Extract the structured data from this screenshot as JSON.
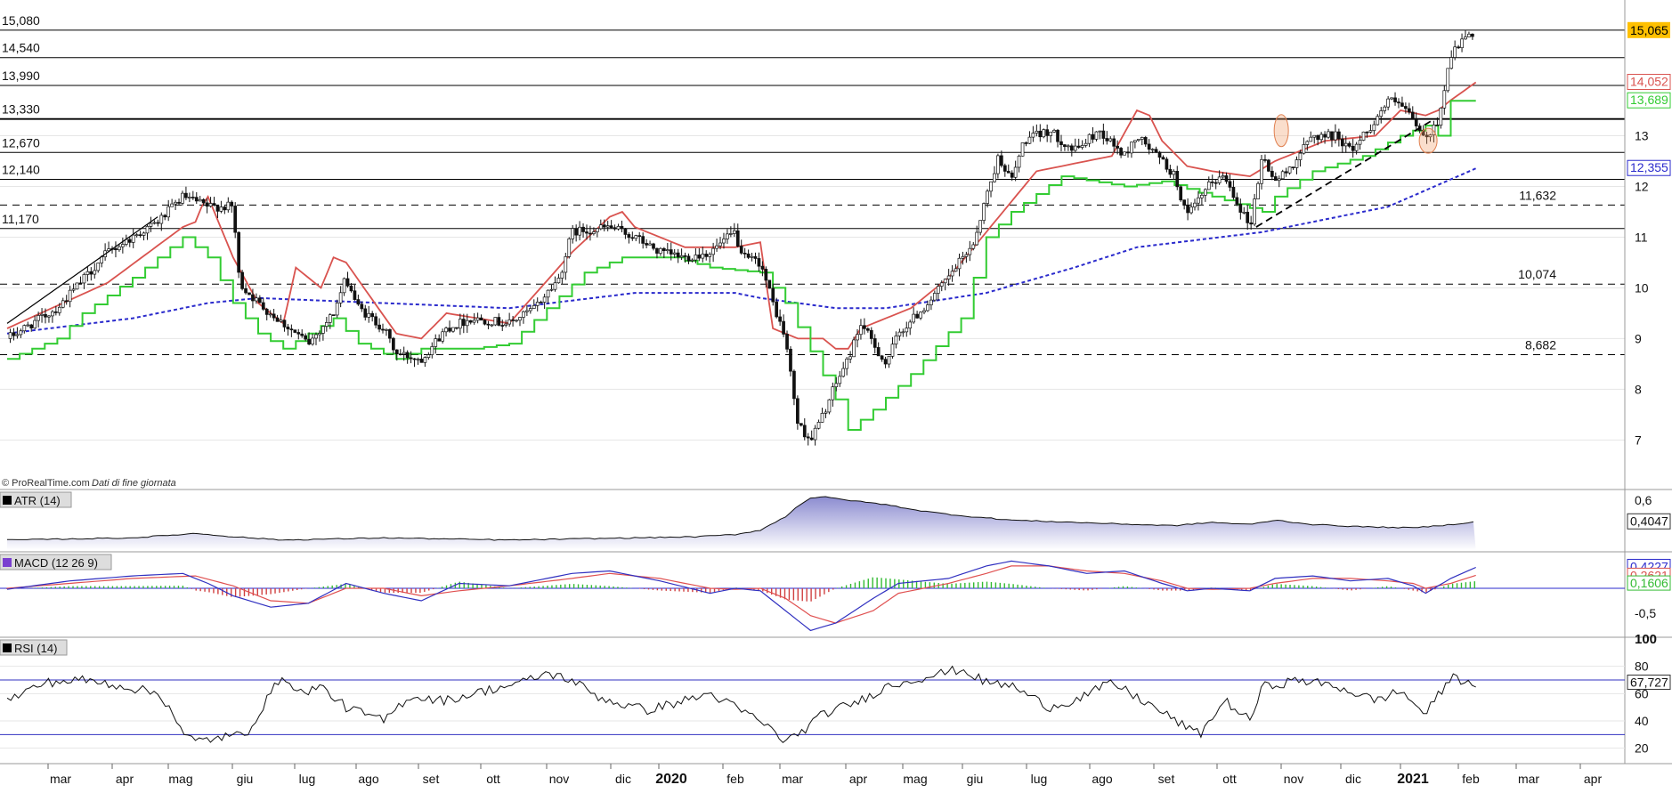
{
  "chart_data": {
    "type": "candlestick",
    "watermark": "© ProRealTime.com",
    "data_note": "Dati di fine giornata",
    "price_axis": {
      "ticks": [
        "13",
        "12",
        "11",
        "10",
        "9",
        "8",
        "7"
      ],
      "ylim": [
        6.2,
        15.5
      ]
    },
    "levels": [
      {
        "value": 15.08,
        "label": "15,080",
        "style": "solid"
      },
      {
        "value": 14.54,
        "label": "14,540",
        "style": "solid"
      },
      {
        "value": 13.99,
        "label": "13,990",
        "style": "solid"
      },
      {
        "value": 13.33,
        "label": "13,330",
        "style": "solid-bold"
      },
      {
        "value": 12.67,
        "label": "12,670",
        "style": "solid"
      },
      {
        "value": 12.14,
        "label": "12,140",
        "style": "solid"
      },
      {
        "value": 11.17,
        "label": "11,170",
        "style": "solid"
      },
      {
        "value": 11.632,
        "label": "11,632",
        "style": "dashed"
      },
      {
        "value": 10.074,
        "label": "10,074",
        "style": "dashed"
      },
      {
        "value": 8.682,
        "label": "8,682",
        "style": "dashed"
      }
    ],
    "last_values": [
      {
        "label": "15,065",
        "color": "#ffc000",
        "series": "price"
      },
      {
        "label": "14,052",
        "color": "#d9534f",
        "series": "stop-red"
      },
      {
        "label": "13,689",
        "color": "#33cc33",
        "series": "stop-green"
      },
      {
        "label": "12,355",
        "color": "#2a2acc",
        "series": "ma-blue"
      }
    ],
    "x_axis": {
      "labels": [
        "mar",
        "apr",
        "mag",
        "giu",
        "lug",
        "ago",
        "set",
        "ott",
        "nov",
        "dic",
        "2020",
        "feb",
        "mar",
        "apr",
        "mag",
        "giu",
        "lug",
        "ago",
        "set",
        "ott",
        "nov",
        "dic",
        "2021",
        "feb",
        "mar",
        "apr"
      ],
      "bold": [
        "2020",
        "2021"
      ]
    },
    "price_anchors": [
      [
        0,
        9.0
      ],
      [
        4,
        9.6
      ],
      [
        8,
        10.7
      ],
      [
        12,
        11.3
      ],
      [
        14,
        11.8
      ],
      [
        16,
        11.6
      ],
      [
        18,
        11.6
      ],
      [
        18.5,
        10.1
      ],
      [
        20,
        9.7
      ],
      [
        22,
        9.3
      ],
      [
        24,
        8.9
      ],
      [
        26,
        9.5
      ],
      [
        27,
        10.2
      ],
      [
        28,
        9.6
      ],
      [
        30,
        9.2
      ],
      [
        31,
        8.7
      ],
      [
        33,
        8.6
      ],
      [
        35,
        9.2
      ],
      [
        37,
        9.4
      ],
      [
        40,
        9.3
      ],
      [
        42,
        9.6
      ],
      [
        44,
        10.2
      ],
      [
        45,
        11.1
      ],
      [
        48,
        11.2
      ],
      [
        50,
        11.0
      ],
      [
        52,
        10.7
      ],
      [
        54,
        10.6
      ],
      [
        56,
        10.7
      ],
      [
        58,
        11.1
      ],
      [
        58.5,
        10.6
      ],
      [
        60,
        10.5
      ],
      [
        61,
        9.7
      ],
      [
        62,
        9.0
      ],
      [
        63,
        7.3
      ],
      [
        64,
        7.0
      ],
      [
        65,
        7.5
      ],
      [
        66,
        8.1
      ],
      [
        67,
        8.6
      ],
      [
        68,
        9.3
      ],
      [
        70,
        8.5
      ],
      [
        71,
        9.1
      ],
      [
        73,
        9.6
      ],
      [
        75,
        10.2
      ],
      [
        77,
        10.9
      ],
      [
        78,
        11.8
      ],
      [
        79,
        12.6
      ],
      [
        80,
        12.1
      ],
      [
        81,
        12.9
      ],
      [
        83,
        13.1
      ],
      [
        85,
        12.7
      ],
      [
        87,
        13.1
      ],
      [
        89,
        12.6
      ],
      [
        90,
        13.0
      ],
      [
        92,
        12.5
      ],
      [
        93,
        12.2
      ],
      [
        94,
        11.4
      ],
      [
        96,
        12.1
      ],
      [
        97,
        12.2
      ],
      [
        98,
        11.7
      ],
      [
        99,
        11.2
      ],
      [
        100,
        12.6
      ],
      [
        101,
        12.1
      ],
      [
        102,
        12.3
      ],
      [
        104,
        13.0
      ],
      [
        106,
        13.0
      ],
      [
        107,
        12.7
      ],
      [
        109,
        13.3
      ],
      [
        110,
        13.7
      ],
      [
        111,
        13.6
      ],
      [
        112,
        13.3
      ],
      [
        113,
        12.9
      ],
      [
        114,
        13.3
      ],
      [
        115,
        14.6
      ],
      [
        116,
        14.9
      ],
      [
        117,
        15.0
      ]
    ],
    "ma_blue": [
      [
        0,
        9.1
      ],
      [
        10,
        9.4
      ],
      [
        16,
        9.7
      ],
      [
        20,
        9.8
      ],
      [
        30,
        9.7
      ],
      [
        40,
        9.6
      ],
      [
        50,
        9.9
      ],
      [
        58,
        9.9
      ],
      [
        60,
        9.8
      ],
      [
        66,
        9.6
      ],
      [
        70,
        9.6
      ],
      [
        78,
        9.9
      ],
      [
        85,
        10.4
      ],
      [
        90,
        10.8
      ],
      [
        100,
        11.1
      ],
      [
        110,
        11.6
      ],
      [
        117,
        12.355
      ]
    ],
    "stop_red": [
      [
        0,
        9.2
      ],
      [
        8,
        10.1
      ],
      [
        14,
        11.2
      ],
      [
        15,
        11.3
      ],
      [
        15.5,
        11.6
      ],
      [
        16,
        11.8
      ],
      [
        18,
        10.6
      ],
      [
        20,
        9.7
      ],
      [
        22,
        9.3
      ],
      [
        23,
        10.4
      ],
      [
        25,
        10.0
      ],
      [
        26,
        10.6
      ],
      [
        27,
        10.5
      ],
      [
        29,
        9.8
      ],
      [
        31,
        9.1
      ],
      [
        33,
        9.0
      ],
      [
        35,
        9.5
      ],
      [
        40,
        9.3
      ],
      [
        45,
        10.7
      ],
      [
        48,
        11.4
      ],
      [
        49,
        11.5
      ],
      [
        50,
        11.2
      ],
      [
        52,
        11.0
      ],
      [
        54,
        10.8
      ],
      [
        58,
        10.8
      ],
      [
        60,
        10.9
      ],
      [
        61,
        9.2
      ],
      [
        63,
        9.0
      ],
      [
        65,
        9.0
      ],
      [
        66,
        8.8
      ],
      [
        67,
        8.8
      ],
      [
        68,
        9.2
      ],
      [
        72,
        9.6
      ],
      [
        75,
        10.2
      ],
      [
        80,
        11.7
      ],
      [
        82,
        12.3
      ],
      [
        88,
        12.6
      ],
      [
        90,
        13.5
      ],
      [
        91,
        13.4
      ],
      [
        92,
        12.9
      ],
      [
        94,
        12.4
      ],
      [
        96,
        12.3
      ],
      [
        99,
        12.2
      ],
      [
        101,
        12.5
      ],
      [
        105,
        12.9
      ],
      [
        109,
        13.0
      ],
      [
        111,
        13.5
      ],
      [
        113,
        13.4
      ],
      [
        114,
        13.5
      ],
      [
        115,
        13.7
      ],
      [
        117,
        14.052
      ]
    ],
    "stop_green": [
      [
        0,
        8.6
      ],
      [
        4,
        9.0
      ],
      [
        6,
        9.5
      ],
      [
        10,
        10.2
      ],
      [
        13,
        10.8
      ],
      [
        14,
        11.0
      ],
      [
        16,
        10.6
      ],
      [
        18,
        9.7
      ],
      [
        20,
        9.1
      ],
      [
        22,
        8.8
      ],
      [
        26,
        9.4
      ],
      [
        28,
        8.9
      ],
      [
        31,
        8.6
      ],
      [
        33,
        8.8
      ],
      [
        37,
        8.8
      ],
      [
        40,
        8.9
      ],
      [
        43,
        9.6
      ],
      [
        46,
        10.3
      ],
      [
        49,
        10.6
      ],
      [
        53,
        10.6
      ],
      [
        56,
        10.4
      ],
      [
        60,
        10.3
      ],
      [
        62,
        9.7
      ],
      [
        66,
        7.8
      ],
      [
        67,
        7.2
      ],
      [
        69,
        7.6
      ],
      [
        72,
        8.3
      ],
      [
        76,
        9.4
      ],
      [
        78,
        11.0
      ],
      [
        80,
        11.5
      ],
      [
        84,
        12.2
      ],
      [
        89,
        12.0
      ],
      [
        92,
        12.1
      ],
      [
        100,
        11.5
      ],
      [
        101,
        11.8
      ],
      [
        104,
        12.3
      ],
      [
        108,
        12.6
      ],
      [
        111,
        13.0
      ],
      [
        113,
        13.2
      ],
      [
        114,
        13.0
      ],
      [
        115,
        13.689
      ],
      [
        117,
        13.689
      ]
    ],
    "atr": {
      "title": "ATR (14)",
      "ticks": [
        "0,6"
      ],
      "last": "0,4047",
      "ylim": [
        0.15,
        0.68
      ],
      "anchors": [
        [
          0,
          0.24
        ],
        [
          5,
          0.25
        ],
        [
          10,
          0.26
        ],
        [
          15,
          0.3
        ],
        [
          18,
          0.27
        ],
        [
          22,
          0.24
        ],
        [
          26,
          0.25
        ],
        [
          30,
          0.26
        ],
        [
          35,
          0.25
        ],
        [
          40,
          0.24
        ],
        [
          45,
          0.25
        ],
        [
          50,
          0.26
        ],
        [
          55,
          0.27
        ],
        [
          58,
          0.29
        ],
        [
          60,
          0.33
        ],
        [
          62,
          0.45
        ],
        [
          63,
          0.55
        ],
        [
          64,
          0.62
        ],
        [
          65,
          0.63
        ],
        [
          67,
          0.6
        ],
        [
          70,
          0.56
        ],
        [
          73,
          0.5
        ],
        [
          76,
          0.46
        ],
        [
          80,
          0.42
        ],
        [
          85,
          0.4
        ],
        [
          90,
          0.38
        ],
        [
          93,
          0.37
        ],
        [
          96,
          0.4
        ],
        [
          99,
          0.38
        ],
        [
          101,
          0.42
        ],
        [
          104,
          0.38
        ],
        [
          108,
          0.36
        ],
        [
          112,
          0.35
        ],
        [
          115,
          0.38
        ],
        [
          117,
          0.4047
        ]
      ]
    },
    "macd": {
      "title": "MACD (12 26 9)",
      "ticks": [
        "-0,5"
      ],
      "last": [
        "0,4227",
        "0,2621",
        "0,1606"
      ],
      "ylim": [
        -0.95,
        0.7
      ],
      "macd_anchors": [
        [
          0,
          -0.02
        ],
        [
          5,
          0.15
        ],
        [
          10,
          0.25
        ],
        [
          14,
          0.3
        ],
        [
          16,
          0.1
        ],
        [
          18,
          -0.15
        ],
        [
          21,
          -0.38
        ],
        [
          24,
          -0.3
        ],
        [
          27,
          0.1
        ],
        [
          30,
          -0.1
        ],
        [
          33,
          -0.25
        ],
        [
          36,
          0.1
        ],
        [
          40,
          0.05
        ],
        [
          45,
          0.3
        ],
        [
          48,
          0.35
        ],
        [
          52,
          0.15
        ],
        [
          56,
          -0.1
        ],
        [
          58,
          0.0
        ],
        [
          60,
          -0.05
        ],
        [
          62,
          -0.45
        ],
        [
          64,
          -0.85
        ],
        [
          66,
          -0.7
        ],
        [
          69,
          -0.2
        ],
        [
          71,
          0.1
        ],
        [
          75,
          0.2
        ],
        [
          78,
          0.45
        ],
        [
          80,
          0.55
        ],
        [
          83,
          0.45
        ],
        [
          86,
          0.3
        ],
        [
          89,
          0.35
        ],
        [
          92,
          0.1
        ],
        [
          94,
          -0.05
        ],
        [
          96,
          0.0
        ],
        [
          99,
          -0.05
        ],
        [
          101,
          0.2
        ],
        [
          104,
          0.25
        ],
        [
          107,
          0.15
        ],
        [
          110,
          0.2
        ],
        [
          112,
          0.05
        ],
        [
          113,
          -0.1
        ],
        [
          115,
          0.2
        ],
        [
          117,
          0.4227
        ]
      ],
      "signal_anchors": [
        [
          0,
          0.0
        ],
        [
          5,
          0.1
        ],
        [
          10,
          0.2
        ],
        [
          15,
          0.25
        ],
        [
          18,
          0.05
        ],
        [
          21,
          -0.25
        ],
        [
          24,
          -0.3
        ],
        [
          27,
          0.0
        ],
        [
          30,
          0.0
        ],
        [
          33,
          -0.15
        ],
        [
          36,
          -0.05
        ],
        [
          40,
          0.05
        ],
        [
          45,
          0.2
        ],
        [
          48,
          0.3
        ],
        [
          52,
          0.2
        ],
        [
          56,
          0.0
        ],
        [
          58,
          -0.02
        ],
        [
          60,
          0.0
        ],
        [
          62,
          -0.2
        ],
        [
          64,
          -0.55
        ],
        [
          66,
          -0.7
        ],
        [
          69,
          -0.45
        ],
        [
          71,
          -0.1
        ],
        [
          75,
          0.1
        ],
        [
          78,
          0.3
        ],
        [
          80,
          0.45
        ],
        [
          83,
          0.45
        ],
        [
          86,
          0.35
        ],
        [
          89,
          0.3
        ],
        [
          92,
          0.15
        ],
        [
          94,
          0.0
        ],
        [
          96,
          -0.02
        ],
        [
          99,
          0.0
        ],
        [
          101,
          0.1
        ],
        [
          104,
          0.2
        ],
        [
          107,
          0.2
        ],
        [
          110,
          0.15
        ],
        [
          112,
          0.1
        ],
        [
          113,
          0.0
        ],
        [
          115,
          0.1
        ],
        [
          117,
          0.2621
        ]
      ]
    },
    "rsi": {
      "title": "RSI (14)",
      "ticks": [
        "100",
        "80",
        "60",
        "40",
        "20"
      ],
      "last": "67,727",
      "ylim": [
        10,
        100
      ],
      "levels": [
        70,
        30
      ],
      "anchors": [
        [
          0,
          55
        ],
        [
          3,
          68
        ],
        [
          6,
          70
        ],
        [
          9,
          66
        ],
        [
          12,
          60
        ],
        [
          13,
          50
        ],
        [
          14,
          30
        ],
        [
          15,
          25
        ],
        [
          17,
          28
        ],
        [
          19,
          30
        ],
        [
          21,
          60
        ],
        [
          22,
          75
        ],
        [
          23,
          60
        ],
        [
          25,
          65
        ],
        [
          27,
          50
        ],
        [
          30,
          40
        ],
        [
          32,
          58
        ],
        [
          35,
          55
        ],
        [
          38,
          62
        ],
        [
          41,
          68
        ],
        [
          43,
          75
        ],
        [
          45,
          70
        ],
        [
          47,
          58
        ],
        [
          49,
          52
        ],
        [
          51,
          48
        ],
        [
          54,
          55
        ],
        [
          56,
          60
        ],
        [
          58,
          50
        ],
        [
          60,
          40
        ],
        [
          62,
          25
        ],
        [
          63,
          30
        ],
        [
          65,
          45
        ],
        [
          68,
          55
        ],
        [
          70,
          65
        ],
        [
          72,
          70
        ],
        [
          74,
          74
        ],
        [
          76,
          78
        ],
        [
          78,
          68
        ],
        [
          80,
          66
        ],
        [
          83,
          50
        ],
        [
          85,
          55
        ],
        [
          88,
          68
        ],
        [
          91,
          52
        ],
        [
          94,
          35
        ],
        [
          95,
          30
        ],
        [
          97,
          55
        ],
        [
          99,
          40
        ],
        [
          100,
          65
        ],
        [
          103,
          70
        ],
        [
          106,
          65
        ],
        [
          109,
          55
        ],
        [
          111,
          62
        ],
        [
          113,
          45
        ],
        [
          115,
          72
        ],
        [
          117,
          67.727
        ]
      ]
    }
  }
}
